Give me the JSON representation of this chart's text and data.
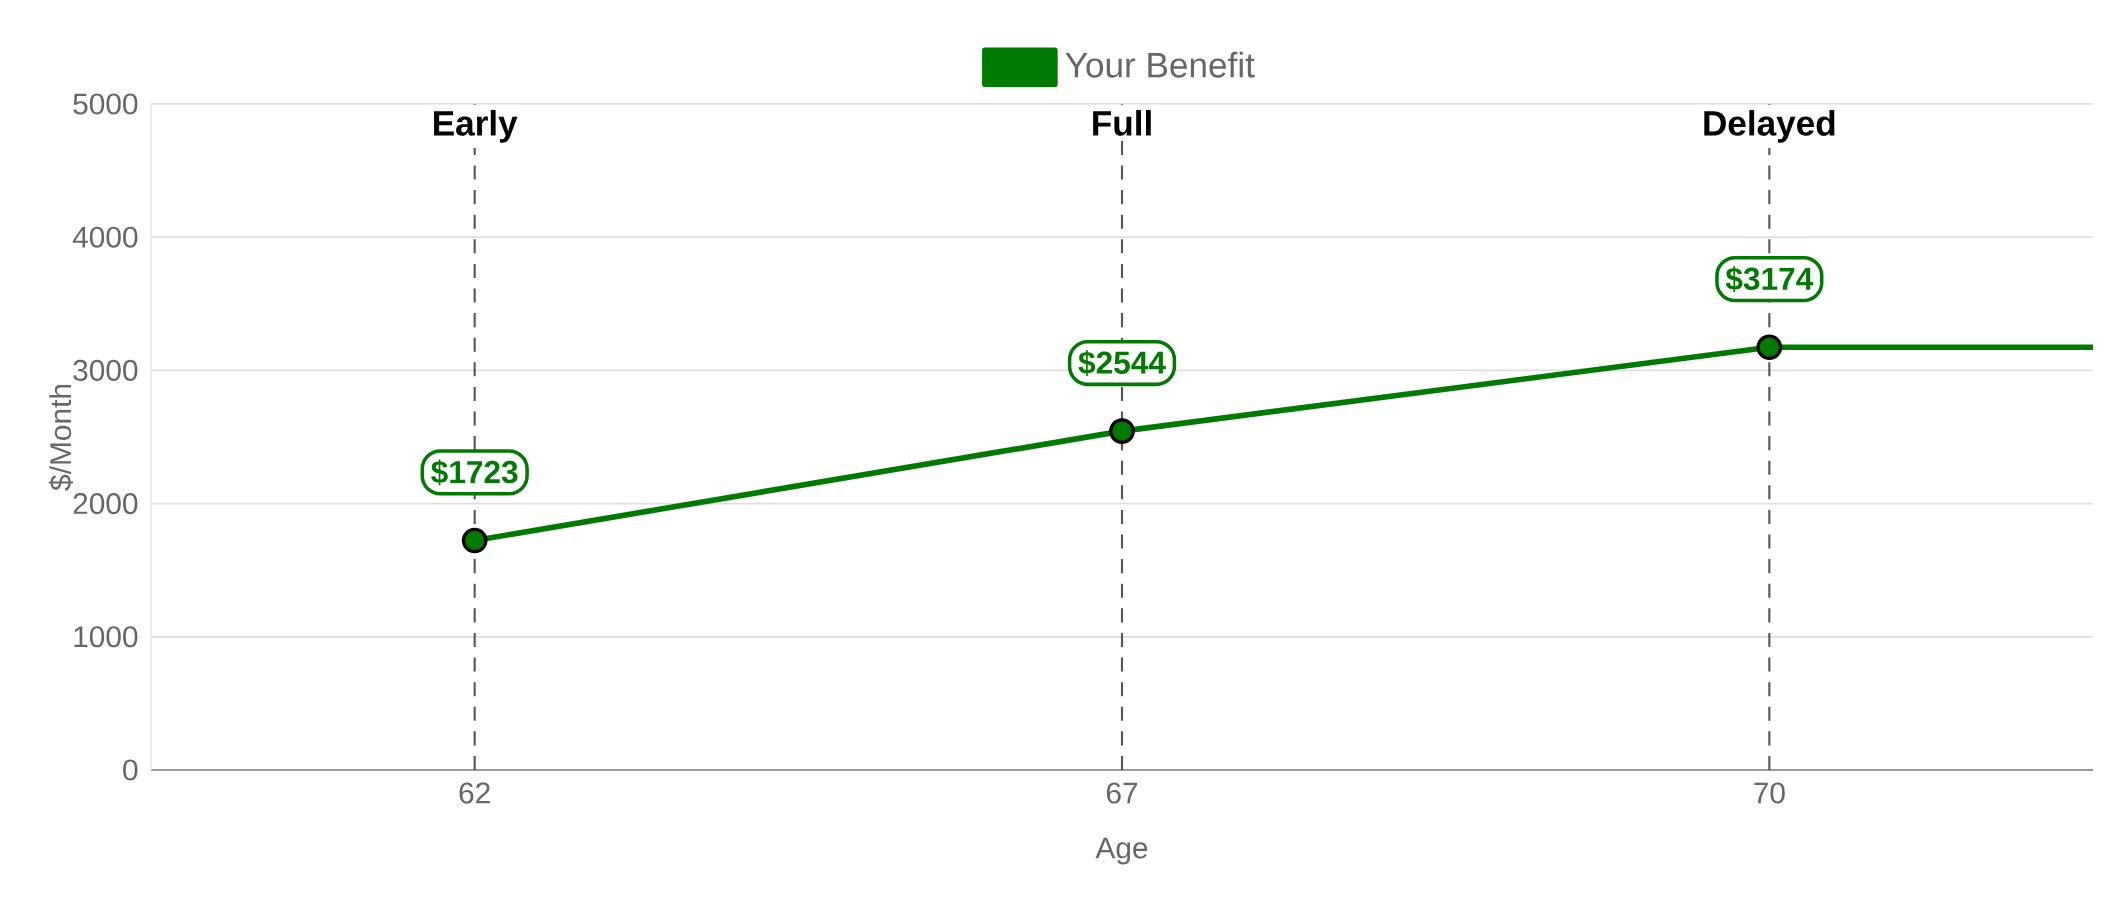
{
  "chart_data": {
    "type": "line",
    "xlabel": "Age",
    "ylabel": "$/Month",
    "categories": [
      "62",
      "67",
      "70"
    ],
    "series": [
      {
        "name": "Your Benefit",
        "color": "#007a00",
        "values": [
          1723,
          2544,
          3174
        ],
        "value_labels": [
          "$1723",
          "$2544",
          "$3174"
        ]
      }
    ],
    "ylim": [
      0,
      5000
    ],
    "yticks": [
      0,
      1000,
      2000,
      3000,
      4000,
      5000
    ],
    "ref_lines": [
      {
        "axis": "x",
        "value": "62",
        "label": "Early",
        "color": "#555555",
        "line_style": "dashed"
      },
      {
        "axis": "x",
        "value": "67",
        "label": "Full",
        "color": "#555555",
        "line_style": "dashed"
      },
      {
        "axis": "x",
        "value": "70",
        "label": "Delayed",
        "color": "#555555",
        "line_style": "dashed"
      },
      {
        "axis": "y",
        "value": 3174,
        "color": "#007a00",
        "line_style": "solid"
      }
    ],
    "grid": "y",
    "legend": "top",
    "marker": "circle",
    "line_style": "solid"
  }
}
